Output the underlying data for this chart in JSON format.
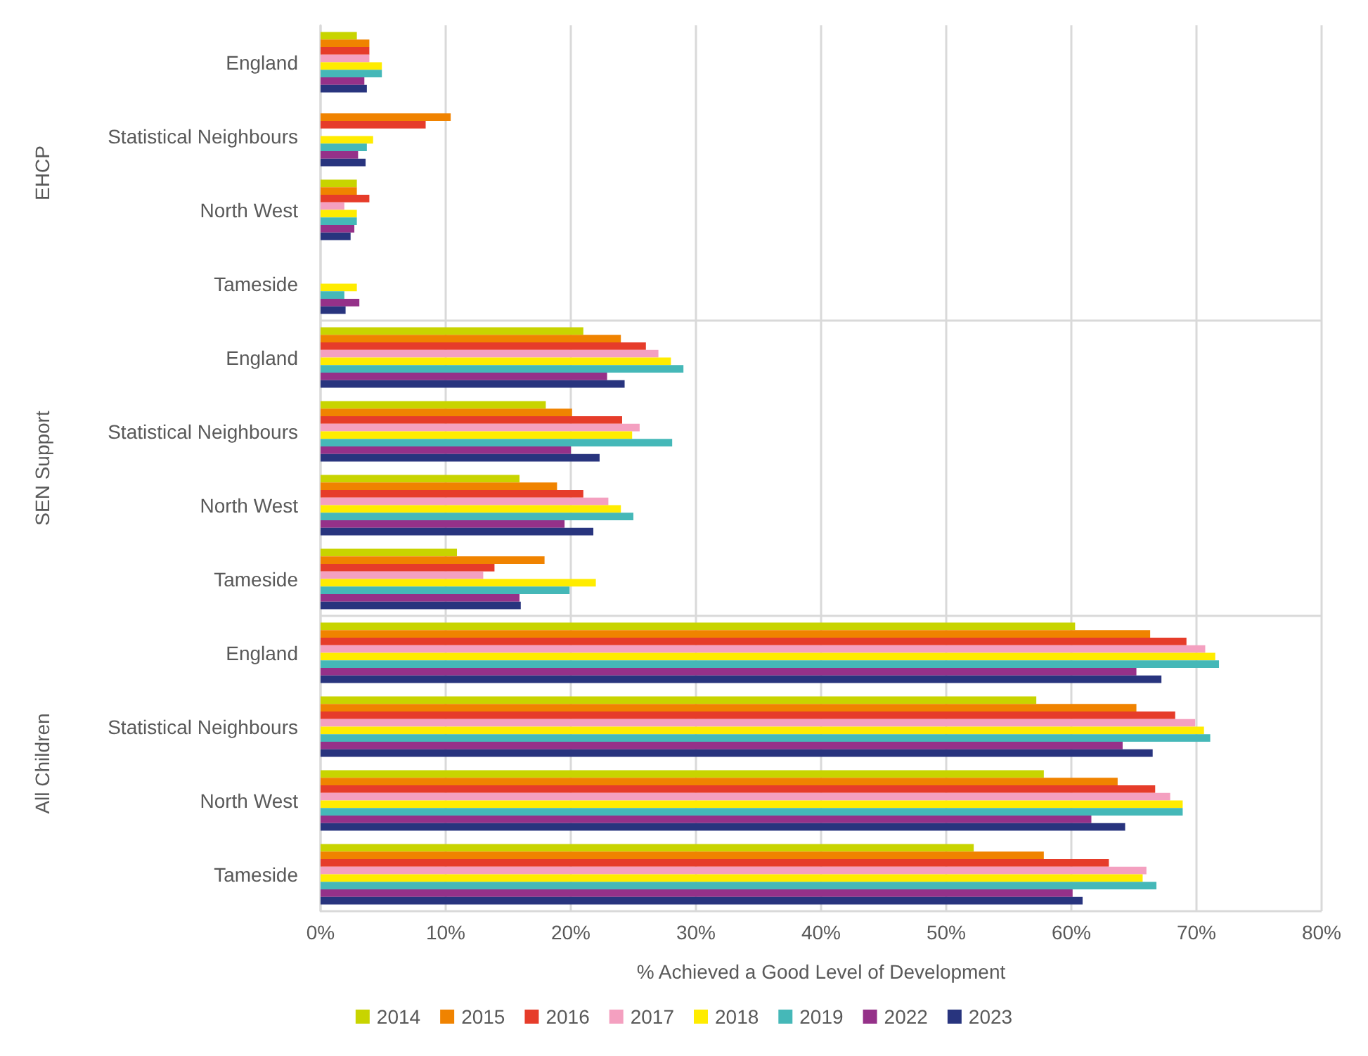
{
  "chart_data": {
    "type": "bar",
    "orientation": "horizontal",
    "xlabel": "% Achieved a Good Level of Development",
    "categories": [
      "England",
      "Statistical Neighbours",
      "North West",
      "Tameside",
      "England",
      "Statistical Neighbours",
      "North West",
      "Tameside",
      "England",
      "Statistical Neighbours",
      "North West",
      "Tameside"
    ],
    "annotations": [
      "EHCP",
      "SEN Support",
      "All Children"
    ],
    "series": [
      {
        "name": "2014",
        "color": "#c8d400",
        "values": [
          2.9,
          null,
          2.9,
          null,
          21.0,
          18.0,
          15.9,
          10.9,
          60.3,
          57.2,
          57.8,
          52.2
        ]
      },
      {
        "name": "2015",
        "color": "#f08300",
        "values": [
          3.9,
          10.4,
          2.9,
          null,
          24.0,
          20.1,
          18.9,
          17.9,
          66.3,
          65.2,
          63.7,
          57.8
        ]
      },
      {
        "name": "2016",
        "color": "#e63c2a",
        "values": [
          3.9,
          8.4,
          3.9,
          null,
          26.0,
          24.1,
          21.0,
          13.9,
          69.2,
          68.3,
          66.7,
          63.0
        ]
      },
      {
        "name": "2017",
        "color": "#f4a0c0",
        "values": [
          3.9,
          null,
          1.9,
          null,
          27.0,
          25.5,
          23.0,
          13.0,
          70.7,
          69.9,
          67.9,
          66.0
        ]
      },
      {
        "name": "2018",
        "color": "#ffec00",
        "values": [
          4.9,
          4.2,
          2.9,
          2.9,
          28.0,
          24.9,
          24.0,
          22.0,
          71.5,
          70.6,
          68.9,
          65.7
        ]
      },
      {
        "name": "2019",
        "color": "#45b8b8",
        "values": [
          4.9,
          3.7,
          2.9,
          1.9,
          29.0,
          28.1,
          25.0,
          19.9,
          71.8,
          71.1,
          68.9,
          66.8
        ]
      },
      {
        "name": "2022",
        "color": "#953189",
        "values": [
          3.5,
          3.0,
          2.7,
          3.1,
          22.9,
          20.0,
          19.5,
          15.9,
          65.2,
          64.1,
          61.6,
          60.1
        ]
      },
      {
        "name": "2023",
        "color": "#28347e",
        "values": [
          3.7,
          3.6,
          2.4,
          2.0,
          24.3,
          22.3,
          21.8,
          16.0,
          67.2,
          66.5,
          64.3,
          60.9
        ]
      }
    ],
    "xlim": [
      0,
      80
    ],
    "xticks": [
      {
        "value": 0,
        "label": "0%"
      },
      {
        "value": 10,
        "label": "10%"
      },
      {
        "value": 20,
        "label": "20%"
      },
      {
        "value": 30,
        "label": "30%"
      },
      {
        "value": 40,
        "label": "40%"
      },
      {
        "value": 50,
        "label": "50%"
      },
      {
        "value": 60,
        "label": "60%"
      },
      {
        "value": 70,
        "label": "70%"
      },
      {
        "value": 80,
        "label": "80%"
      }
    ],
    "grid": "x",
    "legend": "bottom"
  }
}
